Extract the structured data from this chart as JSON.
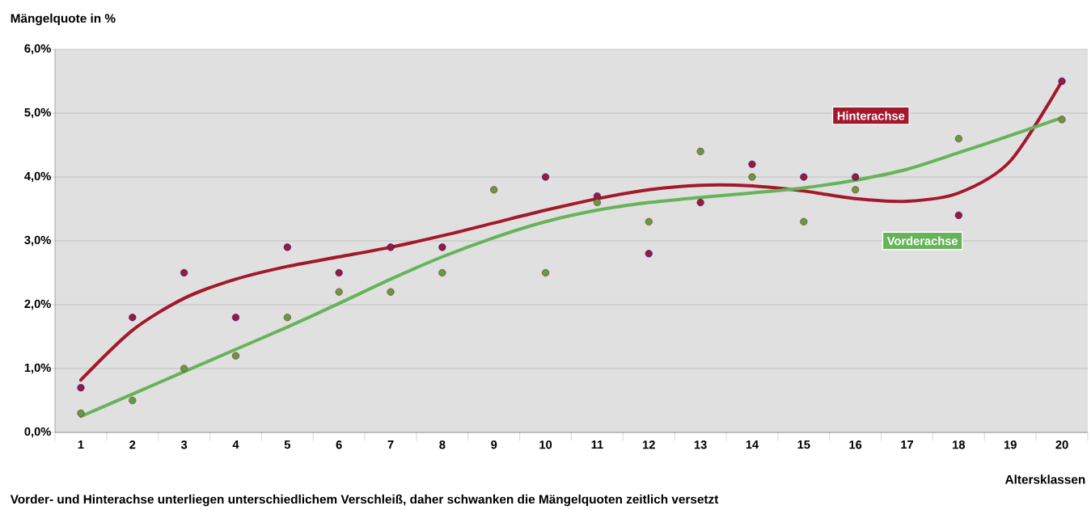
{
  "chart_data": {
    "type": "scatter",
    "ylabel": "Mängelquote in %",
    "xlabel": "Altersklassen",
    "annotations": [
      "Vorder- und Hinterachse unterliegen unterschiedlichem Verschleiß, daher schwanken die Mängelquoten zeitlich versetzt"
    ],
    "categories": [
      "1",
      "2",
      "3",
      "4",
      "5",
      "6",
      "7",
      "8",
      "9",
      "10",
      "11",
      "12",
      "13",
      "14",
      "15",
      "16",
      "17",
      "18",
      "19",
      "20"
    ],
    "ylim": [
      0,
      6
    ],
    "yticks": [
      {
        "value": 0,
        "label": "0,0%"
      },
      {
        "value": 1,
        "label": "1,0%"
      },
      {
        "value": 2,
        "label": "2,0%"
      },
      {
        "value": 3,
        "label": "3,0%"
      },
      {
        "value": 4,
        "label": "4,0%"
      },
      {
        "value": 5,
        "label": "5,0%"
      },
      {
        "value": 6,
        "label": "6,0%"
      }
    ],
    "grid": "y",
    "series": [
      {
        "marker": "circle",
        "color": "#9b1b30",
        "values": [
          0.7,
          1.8,
          2.5,
          1.8,
          2.9,
          2.5,
          2.9,
          2.9,
          null,
          4.0,
          3.7,
          2.8,
          3.6,
          4.2,
          4.0,
          4.0,
          null,
          3.4,
          null,
          5.5
        ]
      },
      {
        "marker": "circle",
        "color": "#5a9e4a",
        "values": [
          0.3,
          0.5,
          1.0,
          1.2,
          1.8,
          2.2,
          2.2,
          2.5,
          3.8,
          2.5,
          3.6,
          3.3,
          4.4,
          4.0,
          3.3,
          3.8,
          null,
          4.6,
          null,
          4.9
        ]
      },
      {
        "type": "line",
        "marker": "none",
        "name": "Hinterachse",
        "color": "#a3182c",
        "values": [
          0.82,
          1.6,
          2.1,
          2.4,
          2.6,
          2.75,
          2.9,
          3.08,
          3.28,
          3.48,
          3.66,
          3.8,
          3.87,
          3.86,
          3.78,
          3.66,
          3.62,
          3.75,
          4.25,
          5.5
        ]
      },
      {
        "type": "line",
        "marker": "none",
        "name": "Vorderachse",
        "color": "#66b35a",
        "values": [
          0.25,
          0.6,
          0.95,
          1.3,
          1.65,
          2.02,
          2.4,
          2.75,
          3.05,
          3.3,
          3.48,
          3.6,
          3.68,
          3.75,
          3.83,
          3.95,
          4.12,
          4.38,
          4.65,
          4.93
        ]
      }
    ]
  }
}
